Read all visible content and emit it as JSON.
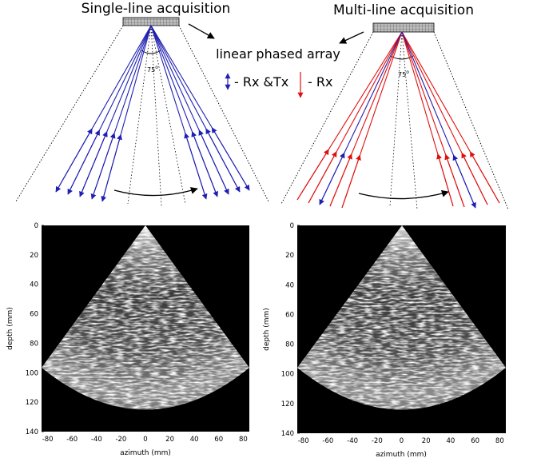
{
  "diagram": {
    "left_title": "Single-line acquisition",
    "right_title": "Multi-line acquisition",
    "array_label": "linear phased array",
    "angle_label": "75",
    "angle_unit": "o",
    "legend_rx_tx": "- Rx &Tx",
    "legend_rx": "- Rx",
    "colors": {
      "rx_tx": "#1f1fb4",
      "rx": "#e01010"
    }
  },
  "images": [
    {
      "xlabel": "azimuth (mm)",
      "ylabel": "depth (mm)",
      "xticks": [
        "-80",
        "-60",
        "-40",
        "-20",
        "0",
        "20",
        "40",
        "60",
        "80"
      ],
      "yticks": [
        "0",
        "20",
        "40",
        "60",
        "80",
        "100",
        "120",
        "140"
      ]
    },
    {
      "xlabel": "azimuth (mm)",
      "ylabel": "depth (mm)",
      "xticks": [
        "-80",
        "-60",
        "-40",
        "-20",
        "0",
        "20",
        "40",
        "60",
        "80"
      ],
      "yticks": [
        "0",
        "20",
        "40",
        "60",
        "80",
        "100",
        "120",
        "140"
      ]
    }
  ]
}
